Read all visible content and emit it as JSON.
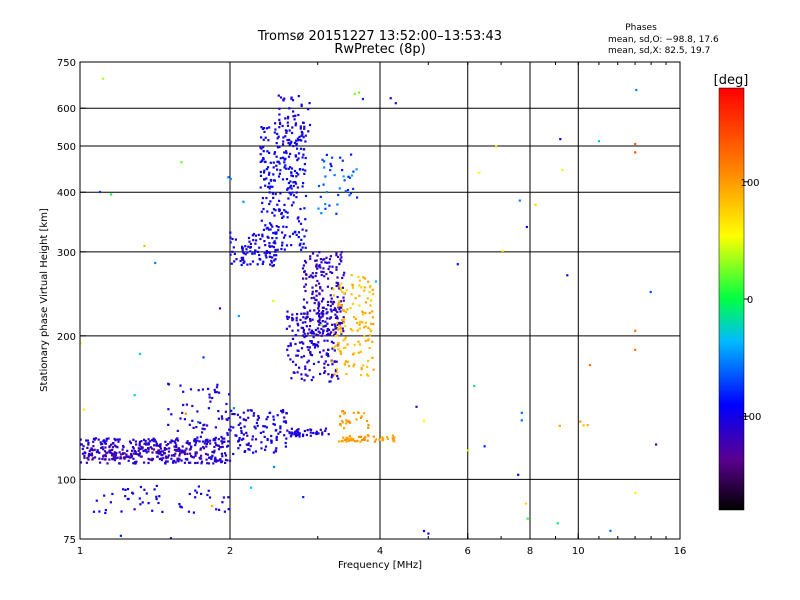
{
  "chart_data": {
    "type": "scatter",
    "title": "Tromsø 20151227 13:52:00–13:53:43",
    "subtitle": "RwPretec (8p)",
    "phases_block": {
      "heading": "Phases",
      "line_o": "mean, sd,O: −98.8, 17.6",
      "line_x": "mean, sd,X:  82.5, 19.7"
    },
    "xlabel": "Frequency [MHz]",
    "ylabel": "Stationary phase Virtual Height [km]",
    "x_scale": "log",
    "y_scale": "log",
    "xlim": [
      1,
      16
    ],
    "ylim": [
      75,
      750
    ],
    "x_ticks": [
      {
        "v": 1,
        "label": "1"
      },
      {
        "v": 2,
        "label": "2"
      },
      {
        "v": 4,
        "label": "4"
      },
      {
        "v": 6,
        "label": "6"
      },
      {
        "v": 8,
        "label": "8"
      },
      {
        "v": 10,
        "label": "10"
      },
      {
        "v": 16,
        "label": "16"
      }
    ],
    "x_grid": [
      2,
      4,
      6,
      8,
      10
    ],
    "y_ticks": [
      {
        "v": 75,
        "label": "75"
      },
      {
        "v": 100,
        "label": "100"
      },
      {
        "v": 200,
        "label": "200"
      },
      {
        "v": 300,
        "label": "300"
      },
      {
        "v": 400,
        "label": "400"
      },
      {
        "v": 500,
        "label": "500"
      },
      {
        "v": 600,
        "label": "600"
      },
      {
        "v": 750,
        "label": "750"
      }
    ],
    "y_grid": [
      100,
      200,
      300,
      400,
      500,
      600
    ],
    "colorbar": {
      "label": "[deg]",
      "range": [
        -180,
        180
      ],
      "ticks": [
        {
          "v": 100,
          "label": "100"
        },
        {
          "v": 0,
          "label": "0"
        },
        {
          "v": -100,
          "label": "-100"
        }
      ]
    },
    "clusters": [
      {
        "f": [
          1.0,
          2.0
        ],
        "h": [
          108,
          122
        ],
        "phase": [
          -120,
          -100
        ],
        "n": 320
      },
      {
        "f": [
          1.0,
          1.8
        ],
        "h": [
          110,
          118
        ],
        "phase": [
          -140,
          -115
        ],
        "n": 90
      },
      {
        "f": [
          1.5,
          2.0
        ],
        "h": [
          118,
          160
        ],
        "phase": [
          -115,
          -95
        ],
        "n": 70
      },
      {
        "f": [
          2.0,
          2.6
        ],
        "h": [
          113,
          140
        ],
        "phase": [
          -110,
          -95
        ],
        "n": 110
      },
      {
        "f": [
          2.0,
          2.5
        ],
        "h": [
          280,
          330
        ],
        "phase": [
          -110,
          -90
        ],
        "n": 90
      },
      {
        "f": [
          2.3,
          2.85
        ],
        "h": [
          300,
          560
        ],
        "phase": [
          -105,
          -85
        ],
        "n": 260
      },
      {
        "f": [
          2.5,
          2.9
        ],
        "h": [
          500,
          640
        ],
        "phase": [
          -110,
          -95
        ],
        "n": 45
      },
      {
        "f": [
          2.6,
          3.3
        ],
        "h": [
          160,
          230
        ],
        "phase": [
          -115,
          -95
        ],
        "n": 170
      },
      {
        "f": [
          2.8,
          3.4
        ],
        "h": [
          200,
          300
        ],
        "phase": [
          -125,
          -105
        ],
        "n": 200
      },
      {
        "f": [
          2.6,
          3.2
        ],
        "h": [
          123,
          128
        ],
        "phase": [
          -115,
          -95
        ],
        "n": 45
      },
      {
        "f": [
          3.2,
          3.9
        ],
        "h": [
          165,
          270
        ],
        "phase": [
          70,
          100
        ],
        "n": 140
      },
      {
        "f": [
          3.3,
          4.3
        ],
        "h": [
          120,
          124
        ],
        "phase": [
          90,
          110
        ],
        "n": 50
      },
      {
        "f": [
          3.3,
          3.8
        ],
        "h": [
          128,
          140
        ],
        "phase": [
          90,
          110
        ],
        "n": 25
      },
      {
        "f": [
          3.0,
          3.6
        ],
        "h": [
          360,
          480
        ],
        "phase": [
          -90,
          -40
        ],
        "n": 40
      },
      {
        "f": [
          1.05,
          2.0
        ],
        "h": [
          85,
          97
        ],
        "phase": [
          -110,
          -90
        ],
        "n": 55
      },
      {
        "f": [
          1.0,
          16
        ],
        "h": [
          75,
          700
        ],
        "phase": [
          -130,
          120
        ],
        "n": 60
      }
    ],
    "isolated_points": [
      {
        "f": 9.5,
        "h": 268,
        "phase": -110
      },
      {
        "f": 13.0,
        "h": 485,
        "phase": 140
      },
      {
        "f": 13.0,
        "h": 505,
        "phase": 130
      },
      {
        "f": 13.0,
        "h": 187,
        "phase": 120
      },
      {
        "f": 13.0,
        "h": 205,
        "phase": 120
      },
      {
        "f": 7.7,
        "h": 138,
        "phase": -60
      },
      {
        "f": 7.7,
        "h": 133,
        "phase": -60
      },
      {
        "f": 11.0,
        "h": 512,
        "phase": -30
      },
      {
        "f": 4.2,
        "h": 630,
        "phase": -110
      },
      {
        "f": 4.3,
        "h": 615,
        "phase": -120
      },
      {
        "f": 4.9,
        "h": 78,
        "phase": -100
      },
      {
        "f": 5.0,
        "h": 77,
        "phase": -100
      }
    ]
  }
}
